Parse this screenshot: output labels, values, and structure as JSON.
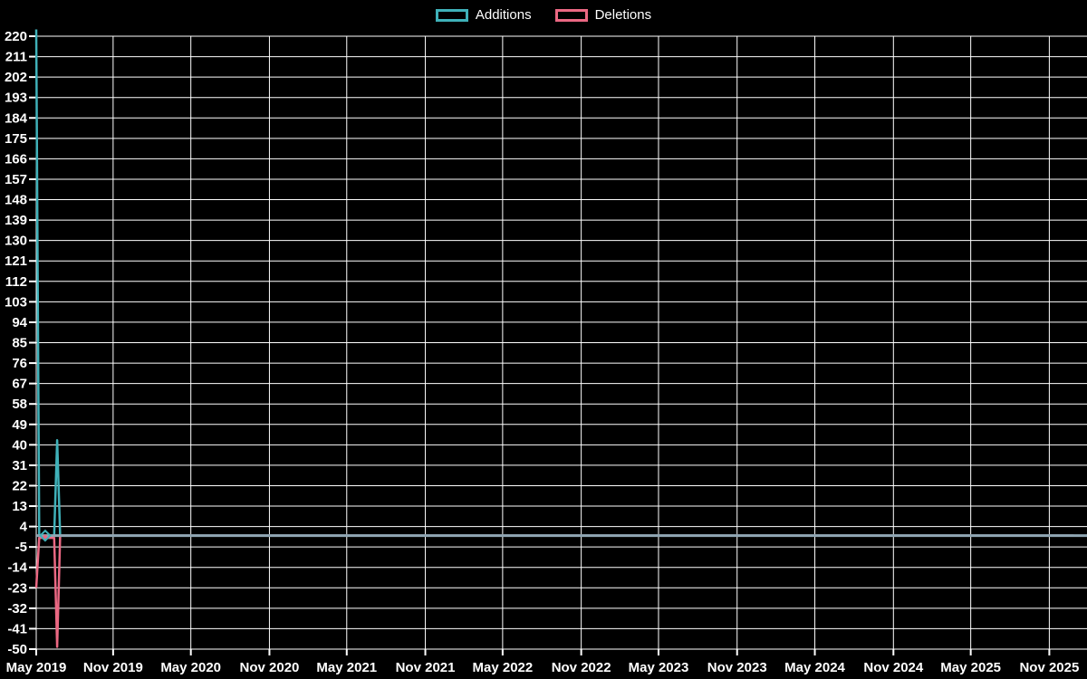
{
  "legend": [
    {
      "label": "Additions",
      "color": "#3FB1B9"
    },
    {
      "label": "Deletions",
      "color": "#EB6883"
    }
  ],
  "colors": {
    "background": "#000000",
    "grid": "#FFFFFF",
    "text": "#FFFFFF",
    "zero_line": "#8FA6B3",
    "additions": "#3FB1B9",
    "deletions": "#EB6883"
  },
  "chart_data": {
    "type": "line",
    "title": "",
    "xlabel": "",
    "ylabel": "",
    "grid": true,
    "legend_position": "top-center",
    "x_axis": {
      "tick_labels": [
        "May 2019",
        "Nov 2019",
        "May 2020",
        "Nov 2020",
        "May 2021",
        "Nov 2021",
        "May 2022",
        "Nov 2022",
        "May 2023",
        "Nov 2023",
        "May 2024",
        "Nov 2024",
        "May 2025",
        "Nov 2025"
      ],
      "tick_dates": [
        "2019-05-01",
        "2019-11-01",
        "2020-05-01",
        "2020-11-01",
        "2021-05-01",
        "2021-11-01",
        "2022-05-01",
        "2022-11-01",
        "2023-05-01",
        "2023-11-01",
        "2024-05-01",
        "2024-11-01",
        "2025-05-01",
        "2025-11-01"
      ]
    },
    "y_axis": {
      "ticks": [
        220,
        211,
        202,
        193,
        184,
        175,
        166,
        157,
        148,
        139,
        130,
        121,
        112,
        103,
        94,
        85,
        76,
        67,
        58,
        49,
        40,
        31,
        22,
        13,
        4,
        -5,
        -14,
        -23,
        -32,
        -41,
        -50
      ],
      "min": -50,
      "max": 220,
      "step": 9
    },
    "zero_line": {
      "value": 0,
      "color": "#8FA6B3"
    },
    "cursor_marker": {
      "date": "2019-05-26",
      "additions_value": 0,
      "deletions_value": -1
    },
    "series": [
      {
        "name": "Additions",
        "color": "#3FB1B9",
        "points": [
          [
            "2019-05-05",
            223
          ],
          [
            "2019-05-12",
            0
          ],
          [
            "2019-05-26",
            0
          ],
          [
            "2019-06-16",
            0
          ],
          [
            "2019-06-23",
            42
          ],
          [
            "2019-06-30",
            0
          ],
          [
            "2025-12-28",
            0
          ]
        ]
      },
      {
        "name": "Deletions",
        "color": "#EB6883",
        "points": [
          [
            "2019-05-05",
            -23
          ],
          [
            "2019-05-12",
            -1
          ],
          [
            "2019-05-26",
            -1
          ],
          [
            "2019-06-16",
            -1
          ],
          [
            "2019-06-23",
            -49
          ],
          [
            "2019-06-30",
            0
          ],
          [
            "2025-12-28",
            0
          ]
        ]
      }
    ]
  }
}
